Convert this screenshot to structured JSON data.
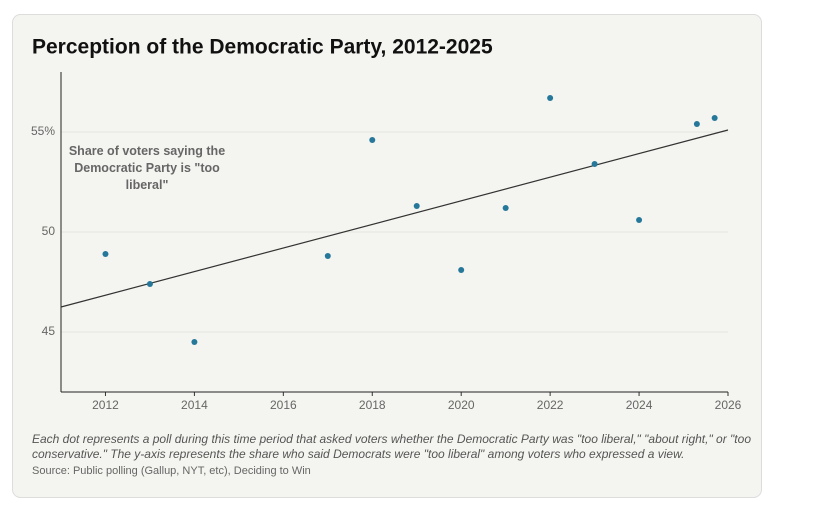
{
  "chart_data": {
    "type": "scatter",
    "title": "Perception of the Democratic Party, 2012-2025",
    "annotation": "Share of voters saying the Democratic Party is \"too liberal\"",
    "note": "Each dot represents a poll during this time period that asked voters whether the Democratic Party was \"too liberal,\" \"about right,\" or \"too conservative.\" The y-axis represents the share who said Democrats were \"too liberal\" among voters who expressed a view.",
    "source": "Source: Public polling (Gallup, NYT, etc), Deciding to Win",
    "x": [
      2012,
      2013,
      2014,
      2017,
      2018,
      2019,
      2020,
      2021,
      2022,
      2023,
      2024,
      2025.3,
      2025.7
    ],
    "values": [
      48.9,
      47.4,
      44.5,
      48.8,
      54.6,
      51.3,
      48.1,
      51.2,
      56.7,
      53.4,
      50.6,
      55.4,
      55.7
    ],
    "color": "#26789a",
    "trend": {
      "x": [
        2011,
        2026
      ],
      "values": [
        46.25,
        55.1
      ],
      "color": "#333333"
    },
    "xlim": [
      2011,
      2026
    ],
    "ylim": [
      42,
      58
    ],
    "xticks": [
      2012,
      2014,
      2016,
      2018,
      2020,
      2022,
      2024,
      2026
    ],
    "yticks": [
      45,
      50,
      {
        "value": 55,
        "label": "55%"
      }
    ],
    "grid": true
  }
}
